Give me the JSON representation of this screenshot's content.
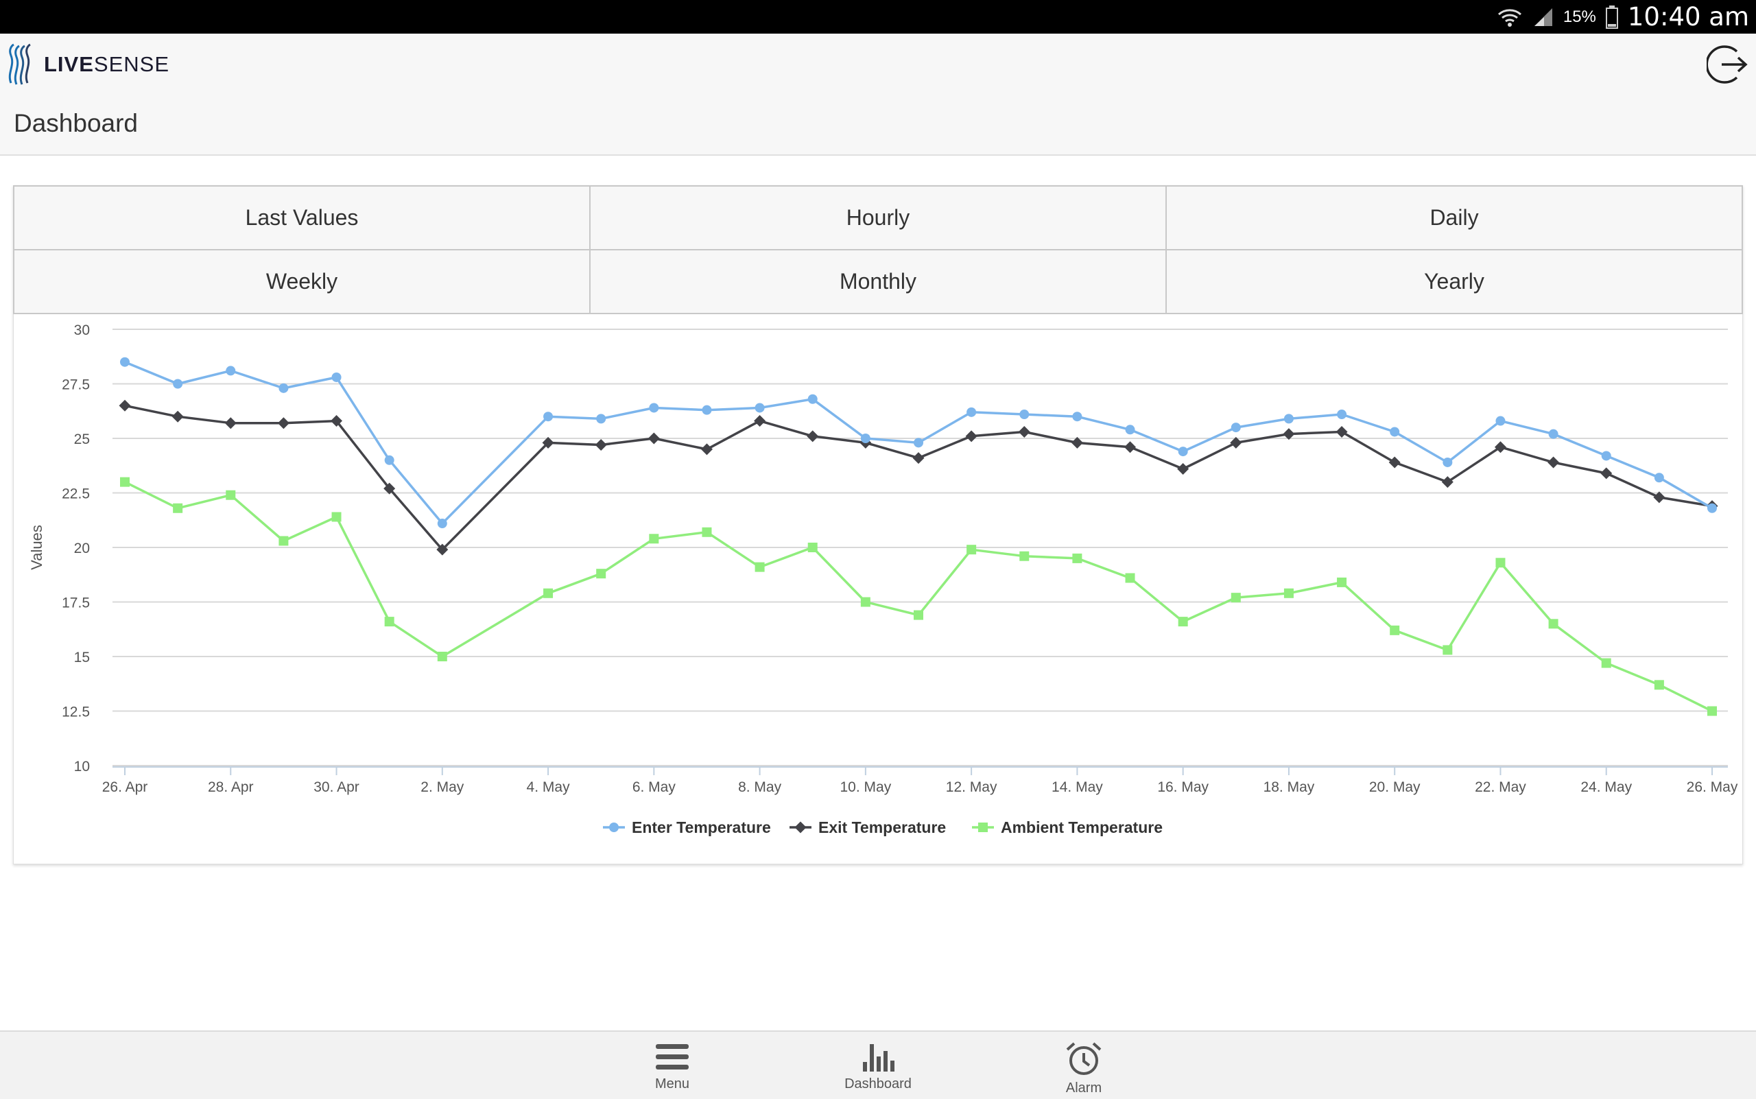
{
  "status_bar": {
    "battery": "15%",
    "time": "10:40 am"
  },
  "app": {
    "logo_bold": "LIVE",
    "logo_light": "SENSE"
  },
  "page": {
    "title": "Dashboard"
  },
  "tabs": [
    "Last Values",
    "Hourly",
    "Daily",
    "Weekly",
    "Monthly",
    "Yearly"
  ],
  "nav": {
    "menu": "Menu",
    "dashboard": "Dashboard",
    "alarm": "Alarm"
  },
  "chart_data": {
    "type": "line",
    "ylabel": "Values",
    "xlabel": "",
    "ylim": [
      10,
      30
    ],
    "yticks": [
      10,
      12.5,
      15,
      17.5,
      20,
      22.5,
      25,
      27.5,
      30
    ],
    "x_tick_labels": [
      "26. Apr",
      "28. Apr",
      "30. Apr",
      "2. May",
      "4. May",
      "6. May",
      "8. May",
      "10. May",
      "12. May",
      "14. May",
      "16. May",
      "18. May",
      "20. May",
      "22. May",
      "24. May",
      "26. May"
    ],
    "x": [
      "26. Apr",
      "27. Apr",
      "28. Apr",
      "29. Apr",
      "30. Apr",
      "1. May",
      "2. May",
      "4. May",
      "5. May",
      "6. May",
      "7. May",
      "8. May",
      "9. May",
      "10. May",
      "11. May",
      "12. May",
      "13. May",
      "14. May",
      "15. May",
      "16. May",
      "17. May",
      "18. May",
      "19. May",
      "20. May",
      "21. May",
      "22. May",
      "23. May",
      "24. May",
      "25. May",
      "26. May"
    ],
    "grid": true,
    "legend": "bottom-center",
    "series": [
      {
        "name": "Enter Temperature",
        "color": "#7cb5ec",
        "marker": "circle",
        "values": [
          28.5,
          27.5,
          28.1,
          27.3,
          27.8,
          24.0,
          21.1,
          26.0,
          25.9,
          26.4,
          26.3,
          26.4,
          26.8,
          25.0,
          24.8,
          26.2,
          26.1,
          26.0,
          25.4,
          24.4,
          25.5,
          25.9,
          26.1,
          25.3,
          23.9,
          25.8,
          25.2,
          24.2,
          23.2,
          21.8
        ]
      },
      {
        "name": "Exit Temperature",
        "color": "#434348",
        "marker": "diamond",
        "values": [
          26.5,
          26.0,
          25.7,
          25.7,
          25.8,
          22.7,
          19.9,
          24.8,
          24.7,
          25.0,
          24.5,
          25.8,
          25.1,
          24.8,
          24.1,
          25.1,
          25.3,
          24.8,
          24.6,
          23.6,
          24.8,
          25.2,
          25.3,
          23.9,
          23.0,
          24.6,
          23.9,
          23.4,
          22.3,
          21.9
        ]
      },
      {
        "name": "Ambient Temperature",
        "color": "#90ed7d",
        "marker": "square",
        "values": [
          23.0,
          21.8,
          22.4,
          20.3,
          21.4,
          16.6,
          15.0,
          17.9,
          18.8,
          20.4,
          20.7,
          19.1,
          20.0,
          17.5,
          16.9,
          19.9,
          19.6,
          19.5,
          18.6,
          16.6,
          17.7,
          17.9,
          18.4,
          16.2,
          15.3,
          19.3,
          16.5,
          14.7,
          13.7,
          12.5
        ]
      }
    ]
  }
}
